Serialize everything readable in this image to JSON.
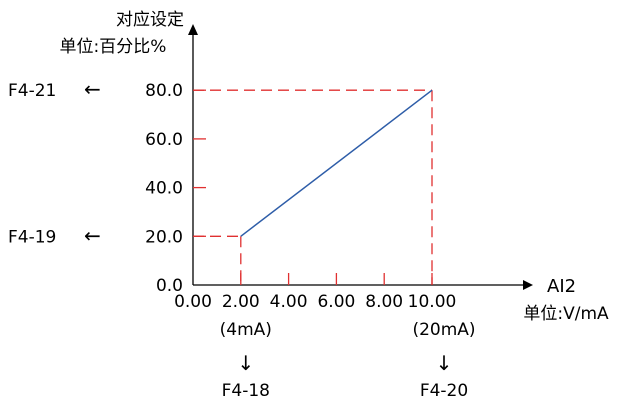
{
  "chart_data": {
    "type": "line",
    "ylabel_line1": "对应设定",
    "ylabel_line2": "单位:百分比%",
    "xlabel_line1": "AI2",
    "xlabel_line2": "单位:V/mA",
    "x_ticks": [
      "0.00",
      "2.00",
      "4.00",
      "6.00",
      "8.00",
      "10.00"
    ],
    "x_tick_values": [
      0,
      2,
      4,
      6,
      8,
      10
    ],
    "y_ticks": [
      "0.0",
      "20.0",
      "40.0",
      "60.0",
      "80.0"
    ],
    "y_tick_values": [
      0,
      20,
      40,
      60,
      80
    ],
    "xlim": [
      0,
      10.5
    ],
    "ylim": [
      0,
      100
    ],
    "series": [
      {
        "x": [
          2,
          10
        ],
        "y": [
          20,
          80
        ]
      }
    ],
    "x_sub_labels": [
      {
        "x": 2,
        "label": "(4mA)"
      },
      {
        "x": 10,
        "label": "(20mA)"
      }
    ],
    "x_param_labels": [
      {
        "x": 2,
        "arrow": "↓",
        "label": "F4-18"
      },
      {
        "x": 10,
        "arrow": "↓",
        "label": "F4-20"
      }
    ],
    "y_param_labels": [
      {
        "y": 80,
        "label": "F4-21",
        "arrow": "←"
      },
      {
        "y": 20,
        "label": "F4-19",
        "arrow": "←"
      }
    ],
    "colors": {
      "line": "#2E5DA8",
      "guide": "#E03030",
      "axis": "#000000"
    }
  }
}
